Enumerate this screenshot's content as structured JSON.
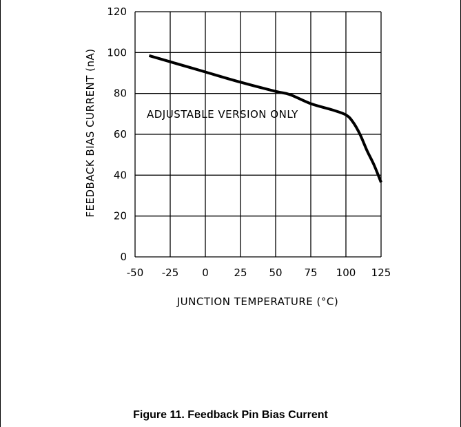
{
  "caption": "Figure 11. Feedback Pin Bias Current",
  "chart_data": {
    "type": "line",
    "title": "",
    "xlabel": "JUNCTION TEMPERATURE (°C)",
    "ylabel": "FEEDBACK BIAS CURRENT (nA)",
    "xlim": [
      -50,
      125
    ],
    "ylim": [
      0,
      120
    ],
    "xticks": [
      -50,
      -25,
      0,
      25,
      50,
      75,
      100,
      125
    ],
    "yticks": [
      0,
      20,
      40,
      60,
      80,
      100,
      120
    ],
    "grid": true,
    "annotation": "ADJUSTABLE VERSION ONLY",
    "series": [
      {
        "x": [
          -40,
          -25,
          0,
          25,
          50,
          60,
          75,
          90,
          100,
          105,
          110,
          115,
          120,
          125
        ],
        "y": [
          98.5,
          95.5,
          90.5,
          85.5,
          81,
          79.5,
          75,
          72,
          69.5,
          66,
          60,
          52,
          45,
          36.5
        ]
      }
    ]
  }
}
